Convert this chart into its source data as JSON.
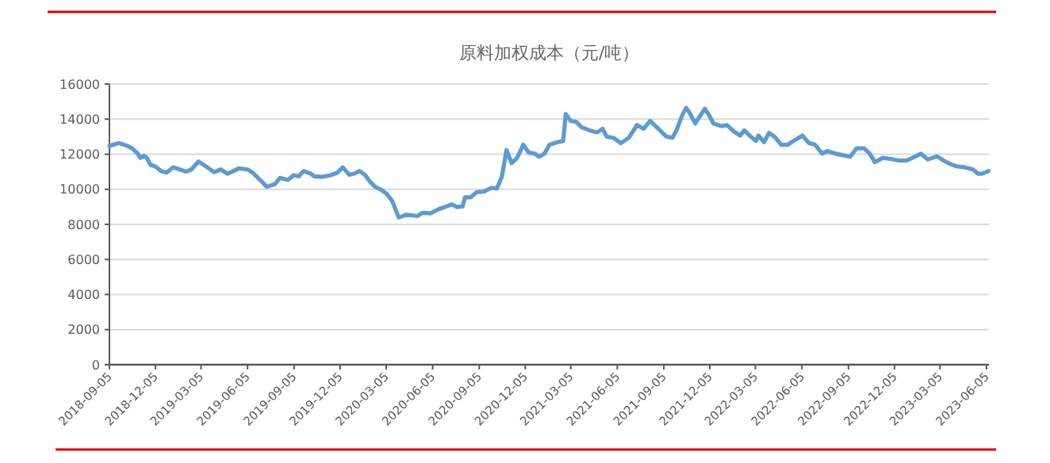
{
  "chart_data": {
    "type": "line",
    "title": "原料加权成本（元/吨）",
    "x": [
      "2018-09-05",
      "2018-09-24",
      "2018-10-10",
      "2018-10-20",
      "2018-10-31",
      "2018-11-05",
      "2018-11-12",
      "2018-11-18",
      "2018-11-25",
      "2018-12-06",
      "2018-12-16",
      "2018-12-27",
      "2019-01-09",
      "2019-01-22",
      "2019-02-04",
      "2019-02-14",
      "2019-02-28",
      "2019-03-13",
      "2019-03-31",
      "2019-04-13",
      "2019-04-26",
      "2019-05-06",
      "2019-05-19",
      "2019-06-05",
      "2019-06-15",
      "2019-06-30",
      "2019-07-13",
      "2019-07-29",
      "2019-08-08",
      "2019-08-24",
      "2019-09-04",
      "2019-09-14",
      "2019-09-24",
      "2019-10-08",
      "2019-10-15",
      "2019-10-31",
      "2019-11-16",
      "2019-11-30",
      "2019-12-10",
      "2019-12-23",
      "2020-01-02",
      "2020-01-12",
      "2020-01-23",
      "2020-02-02",
      "2020-02-12",
      "2020-02-23",
      "2020-03-06",
      "2020-03-17",
      "2020-03-30",
      "2020-04-13",
      "2020-04-26",
      "2020-05-06",
      "2020-05-16",
      "2020-06-01",
      "2020-06-17",
      "2020-07-02",
      "2020-07-13",
      "2020-07-23",
      "2020-08-03",
      "2020-08-08",
      "2020-08-19",
      "2020-08-31",
      "2020-09-14",
      "2020-09-29",
      "2020-10-10",
      "2020-10-20",
      "2020-10-29",
      "2020-11-08",
      "2020-11-19",
      "2020-12-01",
      "2020-12-12",
      "2020-12-24",
      "2021-01-01",
      "2021-01-12",
      "2021-01-22",
      "2021-02-07",
      "2021-02-18",
      "2021-02-23",
      "2021-03-05",
      "2021-03-16",
      "2021-03-26",
      "2021-04-11",
      "2021-04-26",
      "2021-05-07",
      "2021-05-15",
      "2021-05-28",
      "2021-06-12",
      "2021-06-28",
      "2021-07-14",
      "2021-07-27",
      "2021-08-09",
      "2021-08-25",
      "2021-09-10",
      "2021-09-22",
      "2021-09-30",
      "2021-10-11",
      "2021-10-19",
      "2021-10-26",
      "2021-11-06",
      "2021-11-16",
      "2021-11-25",
      "2021-12-04",
      "2021-12-12",
      "2021-12-28",
      "2022-01-08",
      "2022-01-21",
      "2022-02-03",
      "2022-02-11",
      "2022-02-24",
      "2022-03-06",
      "2022-03-11",
      "2022-03-22",
      "2022-04-01",
      "2022-04-12",
      "2022-04-25",
      "2022-05-08",
      "2022-05-24",
      "2022-06-06",
      "2022-06-19",
      "2022-07-01",
      "2022-07-15",
      "2022-07-25",
      "2022-08-10",
      "2022-08-26",
      "2022-09-08",
      "2022-09-21",
      "2022-10-06",
      "2022-10-17",
      "2022-10-27",
      "2022-11-12",
      "2022-11-28",
      "2022-12-13",
      "2022-12-29",
      "2023-01-14",
      "2023-01-26",
      "2023-02-09",
      "2023-02-27",
      "2023-03-12",
      "2023-03-26",
      "2023-04-07",
      "2023-04-23",
      "2023-05-09",
      "2023-05-19",
      "2023-05-27",
      "2023-06-09"
    ],
    "series": [
      {
        "color": "#5b9bd5",
        "values": [
          12480,
          12630,
          12480,
          12330,
          12030,
          11790,
          11910,
          11790,
          11400,
          11280,
          11040,
          10950,
          11250,
          11130,
          11010,
          11130,
          11580,
          11340,
          10980,
          11130,
          10890,
          11010,
          11190,
          11130,
          10950,
          10530,
          10140,
          10290,
          10650,
          10530,
          10800,
          10740,
          11040,
          10890,
          10740,
          10710,
          10800,
          10950,
          11250,
          10830,
          10890,
          11040,
          10830,
          10440,
          10140,
          9990,
          9750,
          9330,
          8390,
          8540,
          8510,
          8480,
          8660,
          8630,
          8870,
          9020,
          9140,
          8990,
          9020,
          9540,
          9540,
          9840,
          9870,
          10080,
          10050,
          10740,
          12240,
          11490,
          11790,
          12540,
          12090,
          12030,
          11850,
          12030,
          12540,
          12690,
          12750,
          14290,
          13900,
          13840,
          13540,
          13360,
          13240,
          13450,
          13000,
          12940,
          12630,
          12940,
          13660,
          13450,
          13900,
          13450,
          13000,
          12940,
          13360,
          14200,
          14650,
          14350,
          13750,
          14200,
          14590,
          14200,
          13750,
          13600,
          13660,
          13300,
          13060,
          13360,
          13000,
          12750,
          13060,
          12690,
          13210,
          13000,
          12540,
          12540,
          12840,
          13060,
          12630,
          12540,
          12030,
          12180,
          12030,
          11940,
          11850,
          12330,
          12330,
          12030,
          11550,
          11790,
          11730,
          11640,
          11640,
          11850,
          12030,
          11700,
          11880,
          11640,
          11430,
          11310,
          11250,
          11130,
          10890,
          10890,
          11040
        ]
      }
    ],
    "xlim": [
      "2018-09-05",
      "2023-06-10"
    ],
    "xticks": [
      "2018-09-05",
      "2018-12-05",
      "2019-03-05",
      "2019-06-05",
      "2019-09-05",
      "2019-12-05",
      "2020-03-05",
      "2020-06-05",
      "2020-09-05",
      "2020-12-05",
      "2021-03-05",
      "2021-06-05",
      "2021-09-05",
      "2021-12-05",
      "2022-03-05",
      "2022-06-05",
      "2022-09-05",
      "2022-12-05",
      "2023-03-05",
      "2023-06-05"
    ],
    "ylim": [
      0,
      16000
    ],
    "yticks": [
      0,
      2000,
      4000,
      6000,
      8000,
      10000,
      12000,
      14000,
      16000
    ],
    "grid": "y"
  }
}
